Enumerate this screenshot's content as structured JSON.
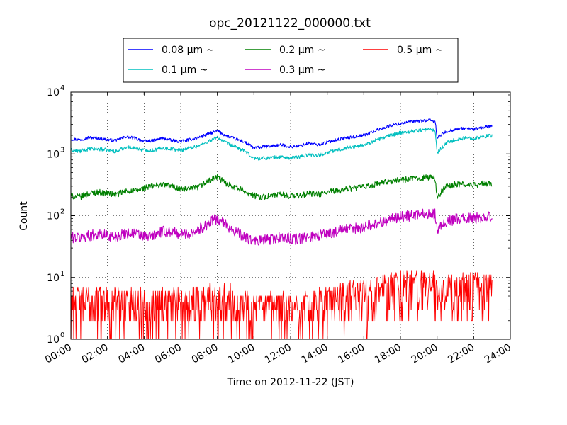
{
  "chart_data": {
    "type": "line",
    "title": "opc_20121122_000000.txt",
    "xlabel": "Time on 2012-11-22 (JST)",
    "ylabel": "Count",
    "x_ticks": [
      "00:00",
      "02:00",
      "04:00",
      "06:00",
      "08:00",
      "10:00",
      "12:00",
      "14:00",
      "16:00",
      "18:00",
      "20:00",
      "22:00",
      "24:00"
    ],
    "xlim_hours": [
      0,
      24
    ],
    "y_scale": "log",
    "ylim": [
      1,
      10000
    ],
    "y_ticks": [
      {
        "value": 1,
        "base": "10",
        "exp": "0"
      },
      {
        "value": 10,
        "base": "10",
        "exp": "1"
      },
      {
        "value": 100,
        "base": "10",
        "exp": "2"
      },
      {
        "value": 1000,
        "base": "10",
        "exp": "3"
      },
      {
        "value": 10000,
        "base": "10",
        "exp": "4"
      }
    ],
    "grid": true,
    "legend_position": "top-center",
    "x": [
      0.0,
      0.5,
      1.0,
      1.5,
      2.0,
      2.5,
      3.0,
      3.5,
      4.0,
      4.5,
      5.0,
      5.5,
      6.0,
      6.5,
      7.0,
      7.5,
      8.0,
      8.5,
      9.0,
      9.5,
      10.0,
      10.5,
      11.0,
      11.5,
      12.0,
      12.5,
      13.0,
      13.5,
      14.0,
      14.5,
      15.0,
      15.5,
      16.0,
      16.5,
      17.0,
      17.5,
      18.0,
      18.5,
      19.0,
      19.5,
      19.9,
      20.0,
      20.5,
      21.0,
      21.5,
      22.0,
      22.5,
      23.0
    ],
    "series": [
      {
        "name": "0.08 μm ~",
        "color": "#0000ff",
        "values": [
          1750,
          1700,
          1850,
          1800,
          1700,
          1650,
          1900,
          1800,
          1600,
          1650,
          1800,
          1650,
          1600,
          1700,
          1850,
          2100,
          2350,
          1950,
          1750,
          1550,
          1250,
          1300,
          1350,
          1400,
          1300,
          1350,
          1500,
          1400,
          1550,
          1700,
          1800,
          1900,
          2000,
          2300,
          2600,
          2900,
          3100,
          3300,
          3400,
          3500,
          3400,
          1800,
          2300,
          2500,
          2600,
          2500,
          2700,
          2800
        ]
      },
      {
        "name": "0.1 μm ~",
        "color": "#00bfbf",
        "values": [
          1150,
          1100,
          1200,
          1200,
          1150,
          1100,
          1300,
          1250,
          1150,
          1150,
          1250,
          1200,
          1150,
          1250,
          1350,
          1600,
          1850,
          1500,
          1300,
          1100,
          850,
          850,
          870,
          900,
          850,
          900,
          980,
          950,
          1050,
          1150,
          1250,
          1300,
          1400,
          1600,
          1800,
          2000,
          2200,
          2300,
          2400,
          2500,
          2400,
          1050,
          1500,
          1700,
          1800,
          1800,
          1900,
          2000
        ]
      },
      {
        "name": "0.2 μm ~",
        "color": "#008000",
        "values": [
          210,
          200,
          230,
          240,
          230,
          220,
          250,
          250,
          280,
          300,
          320,
          300,
          270,
          270,
          290,
          360,
          420,
          330,
          290,
          250,
          210,
          200,
          210,
          220,
          210,
          210,
          230,
          220,
          240,
          250,
          270,
          280,
          290,
          310,
          340,
          360,
          380,
          390,
          400,
          420,
          400,
          200,
          300,
          320,
          320,
          310,
          330,
          330
        ]
      },
      {
        "name": "0.3 μm ~",
        "color": "#bf00bf",
        "values": [
          45,
          44,
          48,
          50,
          48,
          46,
          52,
          52,
          45,
          48,
          55,
          55,
          50,
          52,
          60,
          75,
          90,
          70,
          55,
          45,
          38,
          40,
          42,
          45,
          42,
          42,
          46,
          48,
          52,
          55,
          60,
          62,
          66,
          72,
          80,
          88,
          96,
          100,
          105,
          110,
          105,
          60,
          80,
          88,
          90,
          90,
          95,
          95
        ]
      },
      {
        "name": "0.5 μm ~",
        "color": "#ff0000",
        "values": [
          4,
          4,
          4,
          4,
          4,
          3.5,
          4,
          4,
          3.5,
          3.5,
          4,
          4,
          3.5,
          4,
          4,
          4.5,
          5,
          4.5,
          4,
          3.5,
          3,
          3,
          3,
          3,
          3,
          3,
          3.5,
          3.5,
          4,
          4.5,
          4.5,
          5,
          5,
          5.5,
          6,
          6.5,
          7,
          7,
          7.5,
          7,
          7,
          4,
          6,
          6.5,
          6.5,
          6.5,
          6.5,
          6.5
        ]
      }
    ]
  }
}
